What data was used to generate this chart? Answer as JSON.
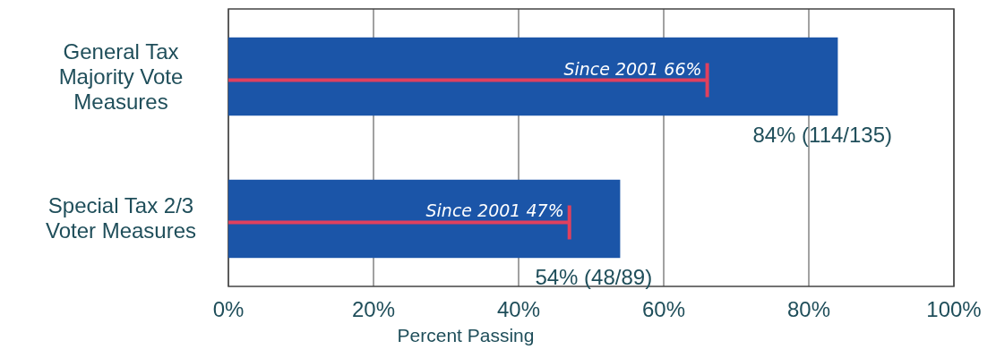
{
  "chart_data": {
    "type": "bar",
    "orientation": "horizontal",
    "categories": [
      "General Tax Majority Vote Measures",
      "Special Tax 2/3 Voter Measures"
    ],
    "xlabel": "Percent Passing",
    "xlim": [
      0,
      100
    ],
    "series": [
      {
        "color": "#1b55a8",
        "values": [
          84,
          54
        ],
        "value_labels": [
          "84% (114/135)",
          "54% (48/89)"
        ]
      },
      {
        "type": "bar",
        "color": "#e0405e",
        "values": [
          66,
          47
        ],
        "value_labels": [
          "Since 2001 66%",
          "Since 2001 47%"
        ]
      }
    ],
    "xticks": [
      {
        "value": 0,
        "label": "0%"
      },
      {
        "value": 20,
        "label": "20%"
      },
      {
        "value": 40,
        "label": "40%"
      },
      {
        "value": 60,
        "label": "60%"
      },
      {
        "value": 80,
        "label": "80%"
      },
      {
        "value": 100,
        "label": "100%"
      }
    ],
    "grid": "x"
  }
}
